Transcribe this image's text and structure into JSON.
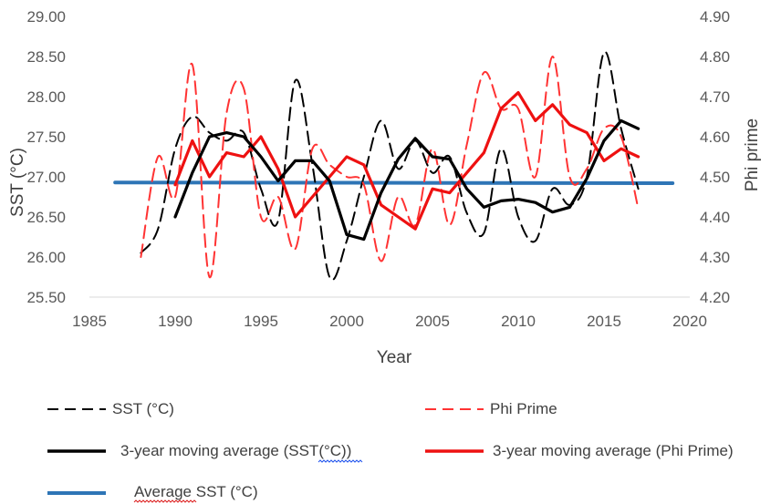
{
  "chart_data": {
    "type": "line",
    "xlabel": "Year",
    "ylabel": "SST (°C)",
    "y2label": "Phi prime",
    "xlim": [
      1985,
      2020
    ],
    "x_ticks": [
      "1985",
      "1990",
      "1995",
      "2000",
      "2005",
      "2010",
      "2015",
      "2020"
    ],
    "ylim": [
      25.5,
      29.0
    ],
    "y_ticks": [
      "25.50",
      "26.00",
      "26.50",
      "27.00",
      "27.50",
      "28.00",
      "28.50",
      "29.00"
    ],
    "y2lim": [
      4.2,
      4.9
    ],
    "y2_ticks": [
      "4.20",
      "4.30",
      "4.40",
      "4.50",
      "4.60",
      "4.70",
      "4.80",
      "4.90"
    ],
    "grid": false,
    "legend_position": "bottom",
    "series": [
      {
        "name": "SST (°C)",
        "axis": "left",
        "style": "dashed",
        "color": "#000000",
        "x": [
          1988,
          1989,
          1990,
          1991,
          1992,
          1993,
          1994,
          1995,
          1996,
          1997,
          1998,
          1999,
          2000,
          2001,
          2002,
          2003,
          2004,
          2005,
          2006,
          2007,
          2008,
          2009,
          2010,
          2011,
          2012,
          2013,
          2014,
          2015,
          2016,
          2017
        ],
        "y": [
          26.05,
          26.35,
          27.35,
          27.75,
          27.55,
          27.45,
          27.55,
          26.85,
          26.45,
          28.2,
          27.15,
          25.75,
          26.2,
          27.0,
          27.7,
          27.1,
          27.45,
          27.05,
          27.25,
          26.55,
          26.3,
          27.35,
          26.5,
          26.2,
          26.85,
          26.65,
          27.0,
          28.55,
          27.6,
          26.85
        ]
      },
      {
        "name": "Phi Prime",
        "axis": "right",
        "style": "dashed",
        "color": "#ff3333",
        "x": [
          1988,
          1989,
          1990,
          1991,
          1992,
          1993,
          1994,
          1995,
          1996,
          1997,
          1998,
          1999,
          2000,
          2001,
          2002,
          2003,
          2004,
          2005,
          2006,
          2007,
          2008,
          2009,
          2010,
          2011,
          2012,
          2013,
          2014,
          2015,
          2016,
          2017
        ],
        "y": [
          4.3,
          4.55,
          4.45,
          4.78,
          4.25,
          4.66,
          4.72,
          4.4,
          4.45,
          4.32,
          4.57,
          4.53,
          4.5,
          4.48,
          4.29,
          4.45,
          4.38,
          4.57,
          4.38,
          4.58,
          4.76,
          4.67,
          4.67,
          4.5,
          4.8,
          4.5,
          4.52,
          4.62,
          4.6,
          4.42
        ]
      },
      {
        "name": "3-year moving average (SST(°C))",
        "axis": "left",
        "style": "solid",
        "color": "#000000",
        "x": [
          1990,
          1991,
          1992,
          1993,
          1994,
          1995,
          1996,
          1997,
          1998,
          1999,
          2000,
          2001,
          2002,
          2003,
          2004,
          2005,
          2006,
          2007,
          2008,
          2009,
          2010,
          2011,
          2012,
          2013,
          2014,
          2015,
          2016,
          2017
        ],
        "y": [
          26.5,
          27.05,
          27.5,
          27.55,
          27.5,
          27.25,
          26.95,
          27.2,
          27.2,
          26.95,
          26.28,
          26.22,
          26.8,
          27.22,
          27.48,
          27.25,
          27.22,
          26.85,
          26.62,
          26.7,
          26.72,
          26.68,
          26.56,
          26.62,
          26.98,
          27.45,
          27.7,
          27.6
        ]
      },
      {
        "name": "3-year moving average (Phi Prime)",
        "axis": "right",
        "style": "solid",
        "color": "#ee1111",
        "x": [
          1990,
          1991,
          1992,
          1993,
          1994,
          1995,
          1996,
          1997,
          1998,
          1999,
          2000,
          2001,
          2002,
          2003,
          2004,
          2005,
          2006,
          2007,
          2008,
          2009,
          2010,
          2011,
          2012,
          2013,
          2014,
          2015,
          2016,
          2017
        ],
        "y": [
          4.48,
          4.59,
          4.5,
          4.56,
          4.55,
          4.6,
          4.52,
          4.4,
          4.45,
          4.5,
          4.55,
          4.53,
          4.43,
          4.4,
          4.37,
          4.47,
          4.46,
          4.51,
          4.56,
          4.67,
          4.71,
          4.64,
          4.68,
          4.63,
          4.61,
          4.54,
          4.57,
          4.55
        ]
      },
      {
        "name": "Average SST (°C)",
        "axis": "left",
        "style": "solid",
        "color": "#2e75b6",
        "x": [
          1986.5,
          2019
        ],
        "y": [
          26.93,
          26.92
        ]
      }
    ]
  }
}
